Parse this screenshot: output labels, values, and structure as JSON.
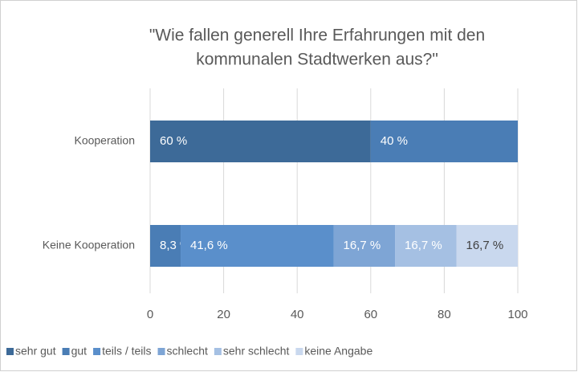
{
  "chart_data": {
    "type": "stacked-bar-horizontal",
    "title": [
      "\"Wie fallen generell Ihre Erfahrungen mit den",
      "kommunalen Stadtwerken aus?\""
    ],
    "categories": [
      "Kooperation",
      "Keine Kooperation"
    ],
    "series": [
      {
        "name": "sehr gut",
        "color": "#3d6a98",
        "values": [
          60,
          0
        ],
        "value_labels": [
          "60 %",
          null
        ]
      },
      {
        "name": "gut",
        "color": "#4a7db5",
        "values": [
          40,
          8.3
        ],
        "value_labels": [
          "40 %",
          "8,3 %"
        ]
      },
      {
        "name": "teils / teils",
        "color": "#5a8fcb",
        "values": [
          0,
          41.6
        ],
        "value_labels": [
          null,
          "41,6 %"
        ]
      },
      {
        "name": "schlecht",
        "color": "#7ea5d5",
        "values": [
          0,
          16.7
        ],
        "value_labels": [
          null,
          "16,7 %"
        ]
      },
      {
        "name": "sehr schlecht",
        "color": "#a5c0e3",
        "values": [
          0,
          16.7
        ],
        "value_labels": [
          null,
          "16,7 %"
        ]
      },
      {
        "name": "keine Angabe",
        "color": "#c9d8ee",
        "values": [
          0,
          16.7
        ],
        "value_labels": [
          null,
          "16,7 %"
        ]
      }
    ],
    "xlim": [
      0,
      100
    ],
    "xticks": [
      0,
      20,
      40,
      60,
      80,
      100
    ],
    "grid": true,
    "legend": "bottom"
  }
}
